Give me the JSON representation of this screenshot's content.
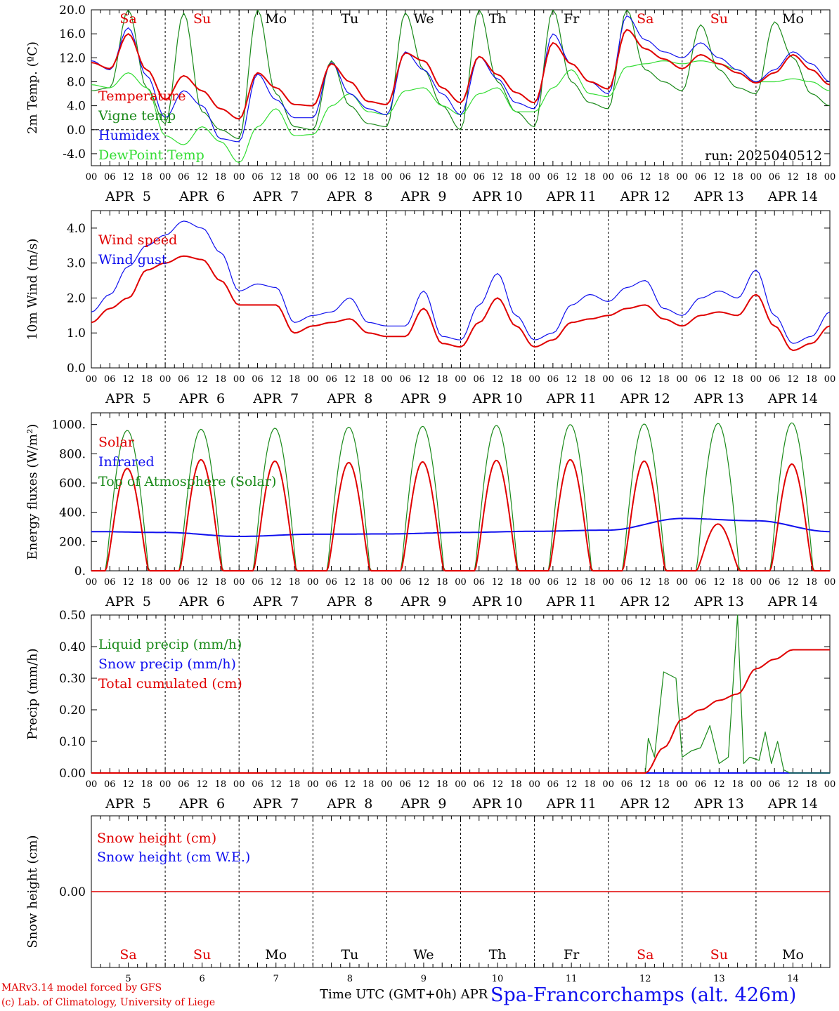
{
  "meta": {
    "run_label": "run: 2025040512",
    "model_line": "MARv3.14 model forced by GFS",
    "credit_line": "(c) Lab. of Climatology, University of Liege",
    "time_axis_label": "Time UTC (GMT+0h)",
    "station_title": "Spa-Francorchamps (alt. 426m)",
    "month_overlap_label": "APR"
  },
  "colors": {
    "red": "#e00000",
    "green": "#1a8a1a",
    "blue": "#1010ee",
    "lightgreen": "#33dd33",
    "black": "#000000"
  },
  "days": {
    "weekday_labels": [
      "Sa",
      "Su",
      "Mo",
      "Tu",
      "We",
      "Th",
      "Fr",
      "Sa",
      "Su",
      "Mo"
    ],
    "weekday_is_weekend": [
      true,
      true,
      false,
      false,
      false,
      false,
      false,
      true,
      true,
      false
    ],
    "date_labels": [
      "APR  5",
      "APR  6",
      "APR  7",
      "APR  8",
      "APR  9",
      "APR 10",
      "APR 11",
      "APR 12",
      "APR 13",
      "APR 14"
    ],
    "day_numbers": [
      "5",
      "6",
      "7",
      "8",
      "9",
      "10",
      "11",
      "12",
      "13",
      "14"
    ],
    "hour_ticks": [
      "00",
      "06",
      "12",
      "18"
    ],
    "final_hour_tick": "00"
  },
  "chart_data": [
    {
      "id": "temperature",
      "type": "line",
      "ylabel": "2m Temp. (ºC)",
      "ylim": [
        -6,
        20
      ],
      "yticks": [
        "-4.0",
        "0.0",
        "4.0",
        "8.0",
        "12.0",
        "16.0",
        "20.0"
      ],
      "ytick_values": [
        -4,
        0,
        4,
        8,
        12,
        16,
        20
      ],
      "zero_line": true,
      "x_hours": [
        0,
        6,
        12,
        18,
        24,
        30,
        36,
        42,
        48,
        54,
        60,
        66,
        72,
        78,
        84,
        90,
        96,
        102,
        108,
        114,
        120,
        126,
        132,
        138,
        144,
        150,
        156,
        162,
        168,
        174,
        180,
        186,
        192,
        198,
        204,
        210,
        216,
        222,
        228,
        234,
        240
      ],
      "series": [
        {
          "name": "Temperature",
          "color": "red",
          "values": [
            11.2,
            10.2,
            16.0,
            10.0,
            5.0,
            9.0,
            6.5,
            3.5,
            1.8,
            9.5,
            7.0,
            4.2,
            4.0,
            11.0,
            8.0,
            4.7,
            4.2,
            12.8,
            11.5,
            7.0,
            4.5,
            12.2,
            9.2,
            6.2,
            4.5,
            14.5,
            11.0,
            8.0,
            6.8,
            16.7,
            13.5,
            11.8,
            10.2,
            12.5,
            11.0,
            9.5,
            7.8,
            9.5,
            12.5,
            10.0,
            7.5
          ]
        },
        {
          "name": "Vigne temp",
          "color": "green",
          "values": [
            6.5,
            7.0,
            20.0,
            7.0,
            1.0,
            19.5,
            3.0,
            0.0,
            -1.5,
            20.0,
            6.0,
            0.5,
            0.0,
            11.5,
            4.0,
            1.0,
            0.5,
            19.5,
            10.0,
            4.0,
            0.0,
            20.0,
            8.0,
            3.0,
            0.5,
            20.0,
            8.0,
            4.5,
            3.5,
            20.0,
            10.0,
            8.0,
            6.5,
            17.5,
            10.0,
            7.0,
            6.0,
            18.0,
            12.0,
            6.0,
            4.0
          ]
        },
        {
          "name": "Humidex",
          "color": "blue",
          "values": [
            11.5,
            10.0,
            17.0,
            9.0,
            2.0,
            6.5,
            4.0,
            -1.5,
            -2.0,
            9.3,
            5.0,
            2.0,
            2.0,
            11.2,
            6.0,
            3.5,
            2.5,
            13.0,
            10.0,
            6.0,
            2.5,
            12.2,
            8.5,
            4.5,
            3.5,
            16.0,
            11.0,
            8.0,
            6.0,
            19.0,
            15.0,
            13.0,
            12.0,
            14.5,
            12.0,
            10.0,
            8.0,
            10.0,
            13.0,
            11.0,
            8.0
          ]
        },
        {
          "name": "DewPoint Temp",
          "color": "lightgreen",
          "values": [
            7.5,
            7.0,
            9.5,
            7.0,
            -1.0,
            -2.5,
            0.5,
            -2.0,
            -5.5,
            0.5,
            3.5,
            -1.0,
            -0.8,
            4.0,
            6.0,
            3.0,
            2.5,
            6.5,
            7.0,
            4.0,
            2.5,
            6.0,
            7.0,
            3.0,
            3.0,
            7.0,
            10.0,
            6.0,
            5.5,
            10.5,
            11.0,
            11.5,
            11.0,
            11.5,
            11.0,
            10.0,
            8.0,
            8.0,
            8.5,
            8.0,
            6.5
          ]
        }
      ]
    },
    {
      "id": "wind",
      "type": "line",
      "ylabel": "10m Wind (m/s)",
      "ylim": [
        0,
        4.5
      ],
      "yticks": [
        "0.0",
        "1.0",
        "2.0",
        "3.0",
        "4.0"
      ],
      "ytick_values": [
        0,
        1,
        2,
        3,
        4
      ],
      "x_hours": [
        0,
        6,
        12,
        18,
        24,
        30,
        36,
        42,
        48,
        54,
        60,
        66,
        72,
        78,
        84,
        90,
        96,
        102,
        108,
        114,
        120,
        126,
        132,
        138,
        144,
        150,
        156,
        162,
        168,
        174,
        180,
        186,
        192,
        198,
        204,
        210,
        216,
        222,
        228,
        234,
        240
      ],
      "series": [
        {
          "name": "Wind speed",
          "color": "red",
          "values": [
            1.3,
            1.7,
            2.0,
            2.8,
            3.0,
            3.2,
            3.1,
            2.5,
            1.8,
            1.8,
            1.8,
            1.0,
            1.2,
            1.3,
            1.4,
            1.0,
            0.9,
            0.9,
            1.7,
            0.7,
            0.6,
            1.3,
            2.0,
            1.2,
            0.6,
            0.8,
            1.3,
            1.4,
            1.5,
            1.7,
            1.8,
            1.4,
            1.2,
            1.5,
            1.6,
            1.5,
            2.1,
            1.2,
            0.5,
            0.7,
            1.2
          ]
        },
        {
          "name": "Wind gust",
          "color": "blue",
          "values": [
            1.6,
            2.1,
            2.9,
            3.5,
            3.8,
            4.2,
            4.0,
            3.3,
            2.2,
            2.4,
            2.3,
            1.3,
            1.5,
            1.6,
            2.0,
            1.3,
            1.2,
            1.2,
            2.2,
            0.9,
            0.8,
            1.8,
            2.7,
            1.5,
            0.8,
            1.0,
            1.8,
            2.1,
            1.9,
            2.3,
            2.5,
            1.7,
            1.5,
            2.0,
            2.2,
            2.0,
            2.8,
            1.5,
            0.7,
            0.9,
            1.6
          ]
        }
      ]
    },
    {
      "id": "energy",
      "type": "line",
      "ylabel": "Energy fluxes (W/m²)",
      "ylim": [
        0,
        1080
      ],
      "yticks": [
        "0.",
        "200.",
        "400.",
        "600.",
        "800.",
        "1000."
      ],
      "ytick_values": [
        0,
        200,
        400,
        600,
        800,
        1000
      ],
      "diurnal_model": {
        "sunrise_hour": 4.7,
        "sunset_hour": 18.6,
        "toa_peak_by_day": [
          960,
          968,
          975,
          982,
          988,
          994,
          1000,
          1004,
          1008,
          1012
        ],
        "solar_peak_by_day": [
          700,
          760,
          750,
          740,
          745,
          755,
          760,
          750,
          320,
          730
        ]
      },
      "series": [
        {
          "name": "Solar",
          "color": "red"
        },
        {
          "name": "Infrared",
          "color": "blue",
          "x_hours": [
            0,
            24,
            48,
            72,
            96,
            120,
            144,
            168,
            192,
            216,
            240
          ],
          "values": [
            268,
            262,
            235,
            250,
            252,
            262,
            270,
            278,
            358,
            342,
            268
          ]
        },
        {
          "name": "Top of Atmosphere (Solar)",
          "color": "green"
        }
      ]
    },
    {
      "id": "precip",
      "type": "line",
      "ylabel": "Precip (mm/h)",
      "ylim": [
        0,
        0.5
      ],
      "yticks": [
        "0.00",
        "0.10",
        "0.20",
        "0.30",
        "0.40",
        "0.50"
      ],
      "ytick_values": [
        0,
        0.1,
        0.2,
        0.3,
        0.4,
        0.5
      ],
      "series": [
        {
          "name": "Liquid precip (mm/h)",
          "color": "green",
          "x_hours": [
            0,
            180,
            181,
            183,
            186,
            190,
            192,
            195,
            198,
            201,
            204,
            207,
            210,
            212,
            214,
            217,
            219,
            221,
            223,
            225,
            227,
            228,
            229,
            230,
            231,
            232,
            233,
            234,
            235,
            236,
            237,
            240
          ],
          "values": [
            0,
            0,
            0.11,
            0.05,
            0.32,
            0.3,
            0.05,
            0.07,
            0.08,
            0.15,
            0.03,
            0.05,
            0.5,
            0.03,
            0.05,
            0.04,
            0.13,
            0.03,
            0.1,
            0.01,
            0,
            0,
            0,
            0,
            0,
            0,
            0,
            0,
            0,
            0,
            0,
            0
          ]
        },
        {
          "name": "Snow precip (mm/h)",
          "color": "blue",
          "x_hours": [
            0,
            240
          ],
          "values": [
            0,
            0
          ]
        },
        {
          "name": "Total cumulated (cm)",
          "color": "red",
          "x_hours": [
            0,
            180,
            186,
            192,
            198,
            204,
            210,
            216,
            222,
            228,
            234,
            240
          ],
          "values": [
            0,
            0,
            0.08,
            0.17,
            0.2,
            0.23,
            0.25,
            0.33,
            0.36,
            0.39,
            0.39,
            0.39
          ]
        }
      ]
    },
    {
      "id": "snow",
      "type": "line",
      "ylabel": "Snow height (cm)",
      "ylim": [
        -1,
        1
      ],
      "yticks": [
        "0.00"
      ],
      "ytick_values": [
        0
      ],
      "series": [
        {
          "name": "Snow height (cm)",
          "color": "red",
          "x_hours": [
            0,
            240
          ],
          "values": [
            0,
            0
          ]
        },
        {
          "name": "Snow height (cm W.E.)",
          "color": "blue"
        }
      ]
    }
  ]
}
